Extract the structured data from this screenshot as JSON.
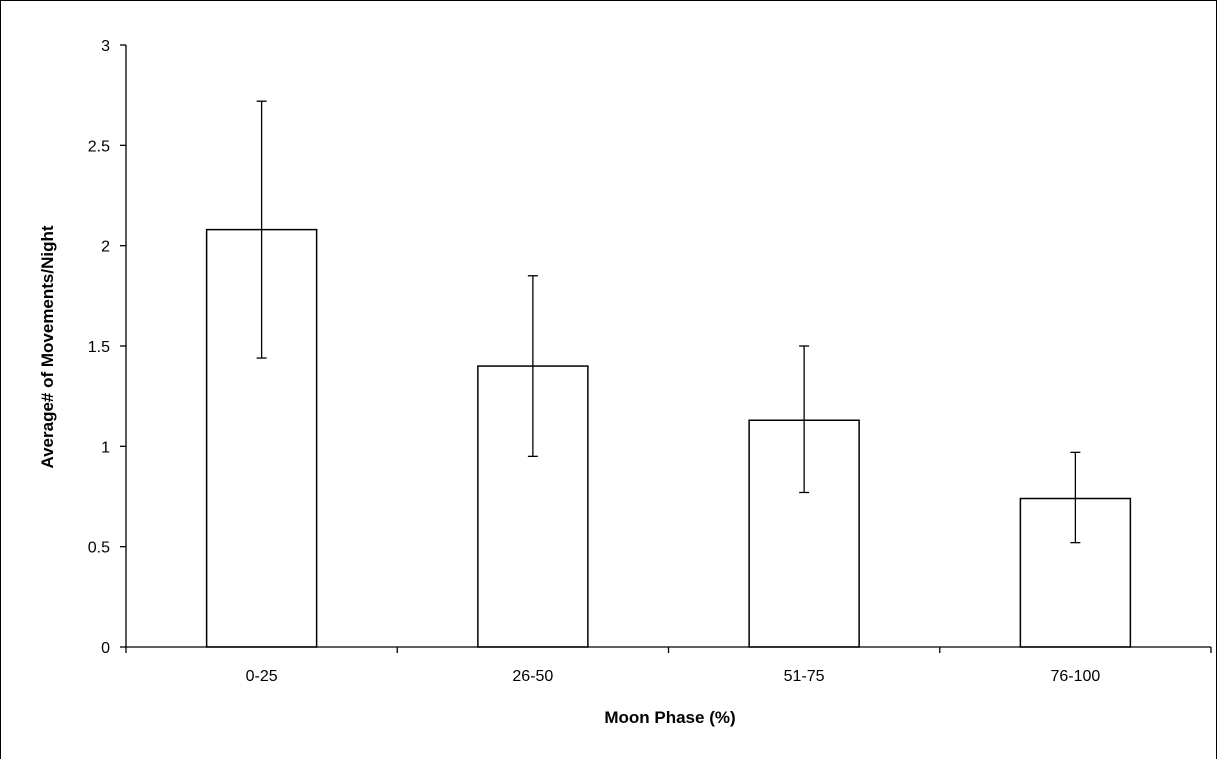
{
  "chart_data": {
    "type": "bar",
    "title": "",
    "xlabel": "Moon Phase (%)",
    "ylabel": "Average# of Movements/Night",
    "categories": [
      "0-25",
      "26-50",
      "51-75",
      "76-100"
    ],
    "values": [
      2.08,
      1.4,
      1.13,
      0.74
    ],
    "error_low": [
      1.44,
      0.95,
      0.77,
      0.52
    ],
    "error_high": [
      2.72,
      1.85,
      1.5,
      0.97
    ],
    "ylim": [
      0,
      3
    ],
    "yticks": [
      "0",
      "0.5",
      "1",
      "1.5",
      "2",
      "2.5",
      "3"
    ],
    "grid": false,
    "legend": "none",
    "colors": {
      "bar_fill": "#ffffff",
      "stroke": "#000000"
    }
  }
}
